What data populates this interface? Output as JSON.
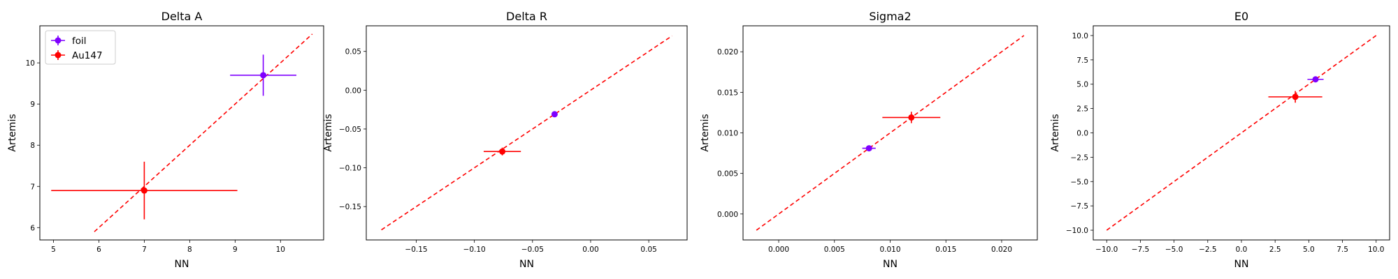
{
  "chart_data": [
    {
      "type": "scatter",
      "title": "Delta A",
      "xlabel": "NN",
      "ylabel": "Artemis",
      "xlim": [
        4.7,
        10.95
      ],
      "ylim": [
        5.7,
        10.9
      ],
      "xticks": [
        5,
        6,
        7,
        8,
        9,
        10
      ],
      "yticks": [
        6,
        7,
        8,
        9,
        10
      ],
      "xtick_labels": [
        "5",
        "6",
        "7",
        "8",
        "9",
        "10"
      ],
      "ytick_labels": [
        "6",
        "7",
        "8",
        "9",
        "10"
      ],
      "reference_line": {
        "x": [
          5.9,
          10.7
        ],
        "y": [
          5.9,
          10.7
        ]
      },
      "legend": true,
      "legend_position": "top-left",
      "series": [
        {
          "name": "foil",
          "color": "#7f00ff",
          "x": [
            9.62
          ],
          "y": [
            9.7
          ],
          "xerr": [
            0.73
          ],
          "yerr": [
            0.5
          ]
        },
        {
          "name": "Au147",
          "color": "#ff0000",
          "x": [
            7.0
          ],
          "y": [
            6.9
          ],
          "xerr": [
            2.05
          ],
          "yerr": [
            0.7
          ]
        }
      ]
    },
    {
      "type": "scatter",
      "title": "Delta R",
      "xlabel": "NN",
      "ylabel": "Artemis",
      "xlim": [
        -0.193,
        0.083
      ],
      "ylim": [
        -0.193,
        0.083
      ],
      "xticks": [
        -0.15,
        -0.1,
        -0.05,
        0.0,
        0.05
      ],
      "yticks": [
        -0.15,
        -0.1,
        -0.05,
        0.0,
        0.05
      ],
      "xtick_labels": [
        "−0.15",
        "−0.10",
        "−0.05",
        "0.00",
        "0.05"
      ],
      "ytick_labels": [
        "−0.15",
        "−0.10",
        "−0.05",
        "0.00",
        "0.05"
      ],
      "reference_line": {
        "x": [
          -0.18,
          0.07
        ],
        "y": [
          -0.18,
          0.07
        ]
      },
      "legend": false,
      "series": [
        {
          "name": "foil",
          "color": "#7f00ff",
          "x": [
            -0.031
          ],
          "y": [
            -0.031
          ],
          "xerr": [
            0.002
          ],
          "yerr": [
            0.002
          ]
        },
        {
          "name": "Au147",
          "color": "#ff0000",
          "x": [
            -0.076
          ],
          "y": [
            -0.079
          ],
          "xerr": [
            0.016
          ],
          "yerr": [
            0.005
          ]
        }
      ]
    },
    {
      "type": "scatter",
      "title": "Sigma2",
      "xlabel": "NN",
      "ylabel": "Artemis",
      "xlim": [
        -0.0032,
        0.0232
      ],
      "ylim": [
        -0.0032,
        0.0232
      ],
      "xticks": [
        0.0,
        0.005,
        0.01,
        0.015,
        0.02
      ],
      "yticks": [
        0.0,
        0.005,
        0.01,
        0.015,
        0.02
      ],
      "xtick_labels": [
        "0.000",
        "0.005",
        "0.010",
        "0.015",
        "0.020"
      ],
      "ytick_labels": [
        "0.000",
        "0.005",
        "0.010",
        "0.015",
        "0.020"
      ],
      "reference_line": {
        "x": [
          -0.002,
          0.022
        ],
        "y": [
          -0.002,
          0.022
        ]
      },
      "legend": false,
      "series": [
        {
          "name": "foil",
          "color": "#7f00ff",
          "x": [
            0.0081
          ],
          "y": [
            0.0081
          ],
          "xerr": [
            0.0006
          ],
          "yerr": [
            0.0003
          ]
        },
        {
          "name": "Au147",
          "color": "#ff0000",
          "x": [
            0.0119
          ],
          "y": [
            0.0119
          ],
          "xerr": [
            0.0026
          ],
          "yerr": [
            0.0007
          ]
        }
      ]
    },
    {
      "type": "scatter",
      "title": "E0",
      "xlabel": "NN",
      "ylabel": "Artemis",
      "xlim": [
        -11.0,
        11.0
      ],
      "ylim": [
        -11.0,
        11.0
      ],
      "xticks": [
        -10,
        -7.5,
        -5,
        -2.5,
        0,
        2.5,
        5,
        7.5,
        10
      ],
      "yticks": [
        -10,
        -7.5,
        -5,
        -2.5,
        0,
        2.5,
        5,
        7.5,
        10
      ],
      "xtick_labels": [
        "−10.0",
        "−7.5",
        "−5.0",
        "−2.5",
        "0.0",
        "2.5",
        "5.0",
        "7.5",
        "10.0"
      ],
      "ytick_labels": [
        "−10.0",
        "−7.5",
        "−5.0",
        "−2.5",
        "0.0",
        "2.5",
        "5.0",
        "7.5",
        "10.0"
      ],
      "reference_line": {
        "x": [
          -10,
          10
        ],
        "y": [
          -10,
          10
        ]
      },
      "legend": false,
      "series": [
        {
          "name": "foil",
          "color": "#7f00ff",
          "x": [
            5.5
          ],
          "y": [
            5.5
          ],
          "xerr": [
            0.6
          ],
          "yerr": [
            0.2
          ]
        },
        {
          "name": "Au147",
          "color": "#ff0000",
          "x": [
            4.0
          ],
          "y": [
            3.7
          ],
          "xerr": [
            2.0
          ],
          "yerr": [
            0.6
          ]
        }
      ]
    }
  ]
}
